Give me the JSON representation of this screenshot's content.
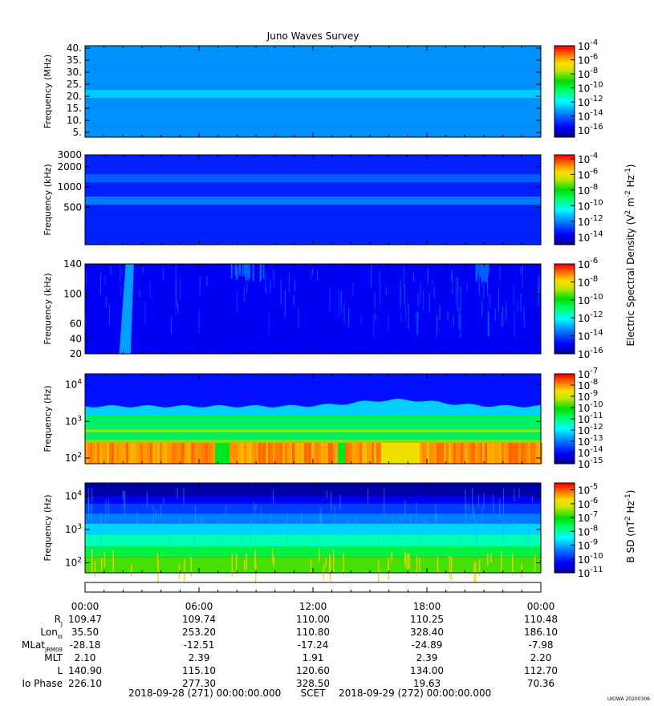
{
  "figure": {
    "title": "Juno Waves Survey",
    "footer_left": "2018-09-28 (271) 00:00:00.000",
    "footer_mid": "SCET",
    "footer_right": "2018-09-29 (272) 00:00:00.000",
    "credit": "UIOWA 20200306",
    "efield_colorbar_label": "Electric Spectral Density (V",
    "efield_colorbar_label_tail": " m",
    "efield_colorbar_label_hz": " Hz",
    "efield_colorbar_label_close": ")",
    "bfield_colorbar_label": "B SD (nT",
    "bfield_colorbar_label_hz": " Hz",
    "bfield_colorbar_label_close": ")"
  },
  "chart_data": [
    {
      "type": "heatmap",
      "panel": "HFR high",
      "ylabel": "Frequency (MHz)",
      "y_ticks": [
        "5.",
        "10.",
        "15.",
        "20.",
        "25.",
        "30.",
        "35.",
        "40."
      ],
      "ylim": [
        3,
        41
      ],
      "colorbar_exponents": [
        "-16",
        "-14",
        "-12",
        "-10",
        "-8",
        "-6",
        "-4"
      ],
      "colorbar_range": [
        -17,
        -4
      ],
      "features": [
        {
          "kind": "band",
          "freq_MHz": 21,
          "level": -12.5
        }
      ],
      "background_level": -13.3
    },
    {
      "type": "heatmap",
      "panel": "HFR low",
      "ylabel": "Frequency (kHz)",
      "y_ticks": [
        "500",
        "1000",
        "2000",
        "3000"
      ],
      "ylim": [
        140,
        3000
      ],
      "log_scale": true,
      "colorbar_exponents": [
        "-14",
        "-12",
        "-10",
        "-8",
        "-6",
        "-4"
      ],
      "colorbar_range": [
        -15,
        -3.5
      ],
      "features": [
        {
          "kind": "band",
          "freq_kHz": 1350,
          "level": -12.4
        },
        {
          "kind": "band",
          "freq_kHz": 630,
          "level": -12.0
        }
      ],
      "background_level": -13.2
    },
    {
      "type": "heatmap",
      "panel": "LFR high",
      "ylabel": "Frequency (kHz)",
      "y_ticks": [
        "20",
        "40",
        "60",
        "100",
        "140"
      ],
      "ylim": [
        20,
        140
      ],
      "colorbar_exponents": [
        "-16",
        "-14",
        "-12",
        "-10",
        "-8",
        "-6"
      ],
      "colorbar_range": [
        -16,
        -6
      ],
      "features": [
        {
          "kind": "burst",
          "hours": [
            1.8,
            2.4
          ],
          "level": -13.0
        },
        {
          "kind": "patch",
          "hours": [
            7.2,
            9.5
          ],
          "level": -13.5
        },
        {
          "kind": "patch",
          "hours": [
            20.5,
            21.2
          ],
          "level": -13.6
        }
      ],
      "background_level": -14.9
    },
    {
      "type": "heatmap",
      "panel": "LFR low",
      "ylabel": "Frequency (Hz)",
      "y_ticks": [
        "10",
        "10",
        "10"
      ],
      "y_tick_exponents": [
        "2",
        "3",
        "4"
      ],
      "ylim": [
        70,
        20000
      ],
      "log_scale": true,
      "colorbar_exponents": [
        "-15",
        "-14",
        "-13",
        "-12",
        "-11",
        "-10",
        "-9",
        "-8",
        "-7"
      ],
      "colorbar_range": [
        -15,
        -7
      ],
      "features": [
        {
          "kind": "quiet_gaps_hours",
          "ranges": [
            [
              6.8,
              7.6
            ],
            [
              13.2,
              13.6
            ]
          ]
        }
      ],
      "background_level": -13.8
    },
    {
      "type": "heatmap",
      "panel": "Magnetic",
      "ylabel": "Frequency (Hz)",
      "y_ticks": [
        "10",
        "10",
        "10"
      ],
      "y_tick_exponents": [
        "2",
        "3",
        "4"
      ],
      "ylim": [
        50,
        25000
      ],
      "log_scale": true,
      "colorbar_exponents": [
        "-11",
        "-10",
        "-9",
        "-8",
        "-7",
        "-6",
        "-5"
      ],
      "colorbar_range": [
        -11,
        -4.5
      ],
      "background_level": -10.8
    }
  ],
  "ephemeris": {
    "time_labels": [
      "00:00",
      "06:00",
      "12:00",
      "18:00",
      "00:00"
    ],
    "rows": [
      {
        "label": "R",
        "sub": "J",
        "values": [
          "109.47",
          "109.74",
          "110.00",
          "110.25",
          "110.48"
        ]
      },
      {
        "label": "Lon",
        "sub": "III",
        "values": [
          "35.50",
          "253.20",
          "110.80",
          "328.40",
          "186.10"
        ]
      },
      {
        "label": "MLat",
        "sub": "JRM09",
        "values": [
          "-28.18",
          "-12.51",
          "-17.24",
          "-24.89",
          "-7.98"
        ]
      },
      {
        "label": "MLT",
        "sub": "",
        "values": [
          "2.10",
          "2.39",
          "1.91",
          "2.39",
          "2.20"
        ]
      },
      {
        "label": "L",
        "sub": "",
        "values": [
          "140.90",
          "115.10",
          "120.60",
          "134.00",
          "112.70"
        ]
      },
      {
        "label": "Io Phase",
        "sub": "",
        "values": [
          "226.10",
          "277.30",
          "328.50",
          "19.63",
          "70.36"
        ]
      }
    ]
  }
}
